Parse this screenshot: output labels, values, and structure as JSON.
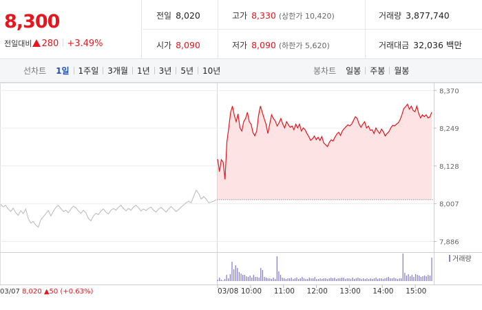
{
  "header": {
    "price": "8,300",
    "diff_label": "전일대비",
    "diff_value": "280",
    "diff_pct": "+3.49%",
    "rows": [
      [
        {
          "label": "전일",
          "value": "8,020",
          "red": false,
          "sub": ""
        },
        {
          "label": "고가",
          "value": "8,330",
          "red": true,
          "sub": "(상한가 10,420)"
        },
        {
          "label": "거래량",
          "value": "3,877,740",
          "red": false,
          "sub": ""
        }
      ],
      [
        {
          "label": "시가",
          "value": "8,090",
          "red": true,
          "sub": ""
        },
        {
          "label": "저가",
          "value": "8,090",
          "red": true,
          "sub": "(하한가 5,620)"
        },
        {
          "label": "거래대금",
          "value": "32,036 백만",
          "red": false,
          "sub": ""
        }
      ]
    ]
  },
  "tabs": {
    "line_title": "선차트",
    "line_tabs": [
      "1일",
      "1주일",
      "3개월",
      "1년",
      "3년",
      "5년",
      "10년"
    ],
    "line_active": "1일",
    "candle_title": "봉차트",
    "candle_tabs": [
      "일봉",
      "주봉",
      "월봉"
    ]
  },
  "colors": {
    "up": "#e4161e",
    "prev_line": "#bdbdbd",
    "fill": "#fde3e3",
    "volume": "#8b7fc9",
    "grid": "#ececec"
  },
  "chart_data": {
    "type": "line",
    "ylim": [
      7865,
      8395
    ],
    "y_ticks": [
      "8,370",
      "8,249",
      "8,128",
      "8,007",
      "7,886"
    ],
    "y_tick_values": [
      8370,
      8249,
      8128,
      8007,
      7886
    ],
    "x_ticks": [
      "03/08",
      "10:00",
      "11:00",
      "12:00",
      "13:00",
      "14:00",
      "15:00"
    ],
    "x_tick_minutes": [
      0,
      60,
      120,
      180,
      240,
      300,
      360
    ],
    "session_minutes": 390,
    "prev_close": 8020,
    "prev_day": {
      "date": "03/07",
      "close_text": "8,020",
      "change_text": "50",
      "pct_text": "(+0.63%)",
      "values": [
        8005,
        7997,
        8002,
        7990,
        7982,
        7993,
        7978,
        7970,
        7985,
        7975,
        7990,
        7960,
        7945,
        7950,
        7938,
        7932,
        7955,
        7965,
        7975,
        7985,
        7968,
        7982,
        7995,
        8002,
        7992,
        7982,
        7986,
        7978,
        7990,
        7999,
        7994,
        7984,
        7976,
        7986,
        7978,
        7960,
        7952,
        7968,
        7976,
        7972,
        7984,
        7990,
        7980,
        7974,
        7986,
        7992,
        7986,
        7996,
        8002,
        7992,
        7984,
        7992,
        7986,
        7996,
        8002,
        7994,
        7984,
        7990,
        7985,
        7992,
        7996,
        7986,
        7980,
        7990,
        7995,
        7988,
        7980,
        7990,
        7998,
        7990,
        7982,
        7988,
        7996,
        8003,
        8010,
        8015,
        8010,
        8030,
        8050,
        8040,
        8022,
        8030,
        8022,
        8010,
        8012,
        8015,
        8020
      ]
    },
    "series": [
      {
        "values": [
          8150,
          8110,
          8148,
          8140,
          8085,
          8205,
          8250,
          8300,
          8320,
          8290,
          8270,
          8295,
          8250,
          8240,
          8270,
          8280,
          8300,
          8270,
          8262,
          8235,
          8225,
          8240,
          8290,
          8320,
          8300,
          8280,
          8262,
          8232,
          8262,
          8292,
          8280,
          8272,
          8256,
          8266,
          8280,
          8262,
          8250,
          8270,
          8260,
          8252,
          8256,
          8244,
          8262,
          8250,
          8262,
          8240,
          8250,
          8244,
          8232,
          8222,
          8210,
          8215,
          8224,
          8212,
          8220,
          8210,
          8222,
          8202,
          8196,
          8190,
          8204,
          8212,
          8208,
          8220,
          8230,
          8236,
          8226,
          8240,
          8248,
          8254,
          8260,
          8256,
          8262,
          8274,
          8286,
          8280,
          8262,
          8252,
          8262,
          8270,
          8250,
          8256,
          8242,
          8244,
          8232,
          8250,
          8240,
          8232,
          8246,
          8238,
          8224,
          8232,
          8238,
          8250,
          8258,
          8256,
          8262,
          8266,
          8276,
          8292,
          8312,
          8318,
          8326,
          8310,
          8320,
          8306,
          8302,
          8320,
          8296,
          8282,
          8292,
          8286,
          8292,
          8282,
          8285,
          8300
        ]
      }
    ],
    "volume_legend": "거래량",
    "volume": [
      2,
      5,
      2,
      1,
      3,
      9,
      4,
      10,
      28,
      17,
      23,
      19,
      13,
      11,
      9,
      9,
      7,
      6,
      8,
      5,
      9,
      6,
      6,
      5,
      19,
      16,
      6,
      5,
      4,
      4,
      3,
      5,
      3,
      36,
      14,
      9,
      5,
      4,
      3,
      4,
      4,
      5,
      3,
      4,
      5,
      3,
      4,
      6,
      4,
      3,
      3,
      5,
      4,
      4,
      6,
      3,
      3,
      4,
      3,
      4,
      4,
      3,
      4,
      5,
      4,
      5,
      3,
      4,
      4,
      5,
      5,
      3,
      4,
      4,
      3,
      5,
      3,
      4,
      5,
      4,
      3,
      4,
      3,
      4,
      3,
      4,
      3,
      4,
      5,
      3,
      4,
      4,
      3,
      4,
      5,
      6,
      4,
      4,
      5,
      4,
      3,
      4,
      4,
      40,
      12,
      8,
      10,
      7,
      9,
      6,
      10,
      9,
      8,
      6,
      7,
      8,
      7,
      9,
      8,
      34
    ]
  }
}
